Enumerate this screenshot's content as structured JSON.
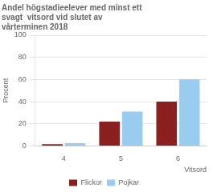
{
  "chart_data": {
    "type": "bar",
    "title": [
      "Andel högstadieelever med minst ett",
      "svagt  vitsord vid slutet av",
      "vårterminen 2018"
    ],
    "y_label": "Procent",
    "x_label": "Vitsord",
    "categories": [
      "4",
      "5",
      "6"
    ],
    "series": [
      {
        "name": "Flickor",
        "color": "#8B2020",
        "values": [
          1.5,
          22,
          40
        ]
      },
      {
        "name": "Pojkar",
        "color": "#99CCEE",
        "values": [
          2.5,
          31,
          60
        ]
      }
    ],
    "ylim": [
      0,
      100
    ],
    "yticks": [
      0,
      20,
      40,
      60,
      80,
      100
    ],
    "grid": true,
    "legend": "bottom"
  }
}
